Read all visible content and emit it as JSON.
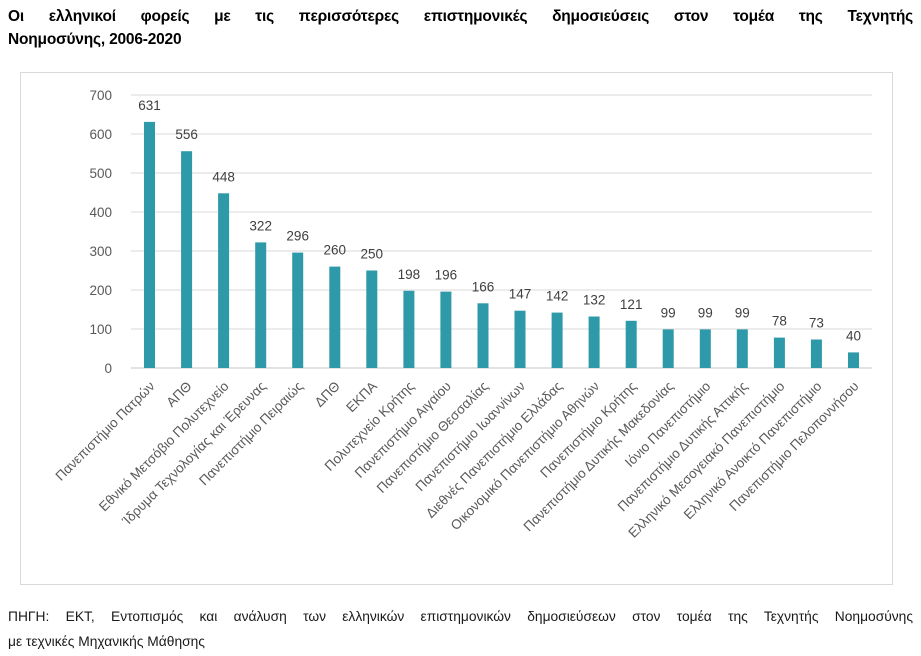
{
  "header": {
    "title_line1": "Οι ελληνικοί φορείς με τις περισσότερες επιστημονικές δημοσιεύσεις στον τομέα της Τεχνητής",
    "title_line2": "Νοημοσύνης, 2006-2020"
  },
  "footer": {
    "source_line1": "ΠΗΓΗ: ΕΚΤ, Εντοπισμός και ανάλυση των ελληνικών επιστημονικών δημοσιεύσεων στον τομέα της Τεχνητής Νοημοσύνης",
    "source_line2": "με τεχνικές Μηχανικής Μάθησης"
  },
  "chart_data": {
    "type": "bar",
    "title": "Οι ελληνικοί φορείς με τις περισσότερες επιστημονικές δημοσιεύσεις στον τομέα της Τεχνητής Νοημοσύνης, 2006-2020",
    "categories": [
      "Πανεπιστήμιο Πατρών",
      "ΑΠΘ",
      "Εθνικό Μετσόβιο Πολυτεχνείο",
      "Ίδρυμα Τεχνολογίας και Έρευνας",
      "Πανεπιστήμιο Πειραιώς",
      "ΔΠΘ",
      "ΕΚΠΑ",
      "Πολυτεχνείο Κρήτης",
      "Πανεπιστήμιο Αιγαίου",
      "Πανεπιστήμιο Θεσσαλίας",
      "Πανεπιστήμιο Ιωαννίνων",
      "Διεθνές Πανεπιστήμιο Ελλάδας",
      "Οικονομικό Πανεπιστήμιο Αθηνών",
      "Πανεπιστήμιο Κρήτης",
      "Πανεπιστήμιο Δυτικής Μακεδονίας",
      "Ιόνιο Πανεπιστήμιο",
      "Πανεπιστήμιο Δυτικής Αττικής",
      "Ελληνικό Μεσογειακό Πανεπιστήμιο",
      "Ελληνικό Ανοικτό Πανεπιστήμιο",
      "Πανεπιστήμιο Πελοποννήσου"
    ],
    "values": [
      631,
      556,
      448,
      322,
      296,
      260,
      250,
      198,
      196,
      166,
      147,
      142,
      132,
      121,
      99,
      99,
      99,
      78,
      73,
      40
    ],
    "xlabel": "",
    "ylabel": "",
    "ylim": [
      0,
      700
    ],
    "yticks": [
      0,
      100,
      200,
      300,
      400,
      500,
      600,
      700
    ],
    "grid": true,
    "legend": "none",
    "data_labels": true,
    "x_label_rotation_deg": 45,
    "colors": {
      "bar": "#2E99A8",
      "grid": "#D9D9D9",
      "axis_line": "#C6C6C6",
      "tick_label": "#595959",
      "data_label": "#404040",
      "frame_border": "#D9D9D9"
    },
    "source": "ΠΗΓΗ: ΕΚΤ, Εντοπισμός και ανάλυση των ελληνικών επιστημονικών δημοσιεύσεων στον τομέα της Τεχνητής Νοημοσύνης με τεχνικές Μηχανικής Μάθησης"
  }
}
